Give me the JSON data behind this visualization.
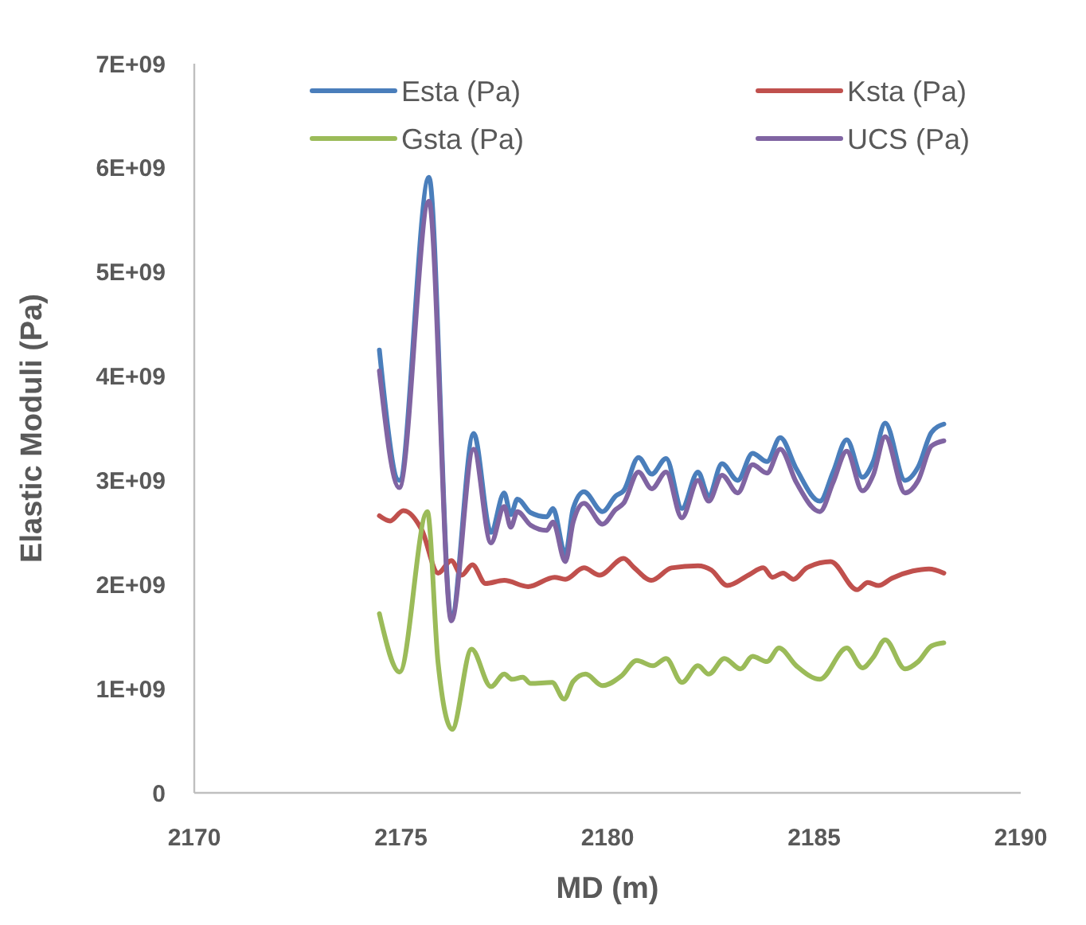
{
  "chart_data": {
    "type": "line",
    "xlabel": "MD (m)",
    "ylabel": "Elastic Moduli (Pa)",
    "xlim": [
      2170,
      2190
    ],
    "xticks": [
      2170,
      2175,
      2180,
      2185,
      2190
    ],
    "ylim": [
      0,
      7000000000.0
    ],
    "yticks": [
      0,
      {
        "value": 1000000000.0,
        "label": "1E+09"
      },
      {
        "value": 2000000000.0,
        "label": "2E+09"
      },
      {
        "value": 3000000000.0,
        "label": "3E+09"
      },
      {
        "value": 4000000000.0,
        "label": "4E+09"
      },
      {
        "value": 5000000000.0,
        "label": "5E+09"
      },
      {
        "value": 6000000000.0,
        "label": "6E+09"
      },
      {
        "value": 7000000000.0,
        "label": "7E+09"
      }
    ],
    "grid": false,
    "legend": "top",
    "marker": "none",
    "line_style": "solid",
    "series": [
      {
        "name": "Esta (Pa)",
        "color": "#4a7ebb",
        "x": [
          2174.48,
          2174.96,
          2175.68,
          2176.22,
          2176.76,
          2177.18,
          2177.5,
          2177.66,
          2177.82,
          2178.14,
          2178.53,
          2178.68,
          2178.98,
          2179.17,
          2179.43,
          2179.88,
          2180.2,
          2180.39,
          2180.75,
          2181.07,
          2181.42,
          2181.8,
          2182.19,
          2182.45,
          2182.77,
          2183.15,
          2183.51,
          2183.86,
          2184.18,
          2184.57,
          2185.14,
          2185.46,
          2185.79,
          2186.17,
          2186.43,
          2186.72,
          2187.2,
          2187.52,
          2187.84,
          2188.14
        ],
        "values": [
          4250000000.0,
          3000000000.0,
          5910000000.0,
          1680000000.0,
          3450000000.0,
          2500000000.0,
          2880000000.0,
          2670000000.0,
          2820000000.0,
          2690000000.0,
          2650000000.0,
          2730000000.0,
          2290000000.0,
          2730000000.0,
          2890000000.0,
          2700000000.0,
          2850000000.0,
          2900000000.0,
          3220000000.0,
          3060000000.0,
          3210000000.0,
          2730000000.0,
          3080000000.0,
          2850000000.0,
          3160000000.0,
          3000000000.0,
          3260000000.0,
          3180000000.0,
          3410000000.0,
          3110000000.0,
          2800000000.0,
          3080000000.0,
          3390000000.0,
          3030000000.0,
          3180000000.0,
          3550000000.0,
          3000000000.0,
          3130000000.0,
          3460000000.0,
          3540000000.0
        ]
      },
      {
        "name": "Ksta (Pa)",
        "color": "#c0504d",
        "x": [
          2174.48,
          2174.74,
          2175.06,
          2175.51,
          2175.9,
          2176.22,
          2176.47,
          2176.73,
          2177.05,
          2177.5,
          2178.08,
          2178.72,
          2178.98,
          2179.43,
          2179.81,
          2180.39,
          2180.65,
          2181.06,
          2181.55,
          2182.19,
          2182.51,
          2182.9,
          2183.41,
          2183.77,
          2183.99,
          2184.25,
          2184.5,
          2184.82,
          2185.4,
          2186.04,
          2186.3,
          2186.56,
          2186.88,
          2187.39,
          2187.78,
          2188.14
        ],
        "values": [
          2660000000.0,
          2610000000.0,
          2710000000.0,
          2520000000.0,
          2110000000.0,
          2230000000.0,
          2090000000.0,
          2190000000.0,
          2010000000.0,
          2040000000.0,
          1980000000.0,
          2070000000.0,
          2050000000.0,
          2160000000.0,
          2090000000.0,
          2250000000.0,
          2160000000.0,
          2040000000.0,
          2160000000.0,
          2180000000.0,
          2140000000.0,
          1990000000.0,
          2090000000.0,
          2160000000.0,
          2070000000.0,
          2110000000.0,
          2050000000.0,
          2160000000.0,
          2220000000.0,
          1950000000.0,
          2020000000.0,
          1990000000.0,
          2060000000.0,
          2130000000.0,
          2150000000.0,
          2110000000.0
        ]
      },
      {
        "name": "Gsta (Pa)",
        "color": "#9bbb59",
        "x": [
          2174.48,
          2174.97,
          2175.64,
          2175.9,
          2176.24,
          2176.71,
          2177.18,
          2177.5,
          2177.69,
          2177.95,
          2178.14,
          2178.66,
          2178.95,
          2179.17,
          2179.47,
          2179.88,
          2180.33,
          2180.71,
          2181.1,
          2181.42,
          2181.8,
          2182.19,
          2182.45,
          2182.83,
          2183.22,
          2183.51,
          2183.86,
          2184.15,
          2184.57,
          2185.14,
          2185.79,
          2186.17,
          2186.43,
          2186.72,
          2187.2,
          2187.52,
          2187.84,
          2188.14
        ],
        "values": [
          1720000000.0,
          1160000000.0,
          2700000000.0,
          1250000000.0,
          610000000.0,
          1380000000.0,
          1020000000.0,
          1140000000.0,
          1090000000.0,
          1110000000.0,
          1050000000.0,
          1060000000.0,
          900000000.0,
          1070000000.0,
          1140000000.0,
          1030000000.0,
          1120000000.0,
          1270000000.0,
          1220000000.0,
          1290000000.0,
          1060000000.0,
          1220000000.0,
          1140000000.0,
          1290000000.0,
          1190000000.0,
          1310000000.0,
          1260000000.0,
          1390000000.0,
          1220000000.0,
          1090000000.0,
          1390000000.0,
          1200000000.0,
          1300000000.0,
          1470000000.0,
          1190000000.0,
          1260000000.0,
          1410000000.0,
          1440000000.0
        ]
      },
      {
        "name": "UCS (Pa)",
        "color": "#8064a2",
        "x": [
          2174.48,
          2174.96,
          2175.68,
          2176.22,
          2176.76,
          2177.18,
          2177.5,
          2177.66,
          2177.82,
          2178.14,
          2178.53,
          2178.68,
          2178.98,
          2179.17,
          2179.43,
          2179.88,
          2180.2,
          2180.39,
          2180.75,
          2181.07,
          2181.42,
          2181.8,
          2182.19,
          2182.45,
          2182.77,
          2183.15,
          2183.51,
          2183.86,
          2184.18,
          2184.57,
          2185.14,
          2185.46,
          2185.79,
          2186.17,
          2186.43,
          2186.72,
          2187.2,
          2187.52,
          2187.84,
          2188.14
        ],
        "values": [
          4050000000.0,
          2930000000.0,
          5680000000.0,
          1650000000.0,
          3300000000.0,
          2400000000.0,
          2750000000.0,
          2550000000.0,
          2700000000.0,
          2570000000.0,
          2520000000.0,
          2600000000.0,
          2220000000.0,
          2600000000.0,
          2780000000.0,
          2580000000.0,
          2720000000.0,
          2780000000.0,
          3080000000.0,
          2920000000.0,
          3080000000.0,
          2640000000.0,
          3000000000.0,
          2800000000.0,
          3050000000.0,
          2880000000.0,
          3150000000.0,
          3070000000.0,
          3300000000.0,
          2980000000.0,
          2700000000.0,
          2980000000.0,
          3280000000.0,
          2900000000.0,
          3050000000.0,
          3420000000.0,
          2880000000.0,
          3000000000.0,
          3330000000.0,
          3380000000.0
        ]
      }
    ]
  }
}
